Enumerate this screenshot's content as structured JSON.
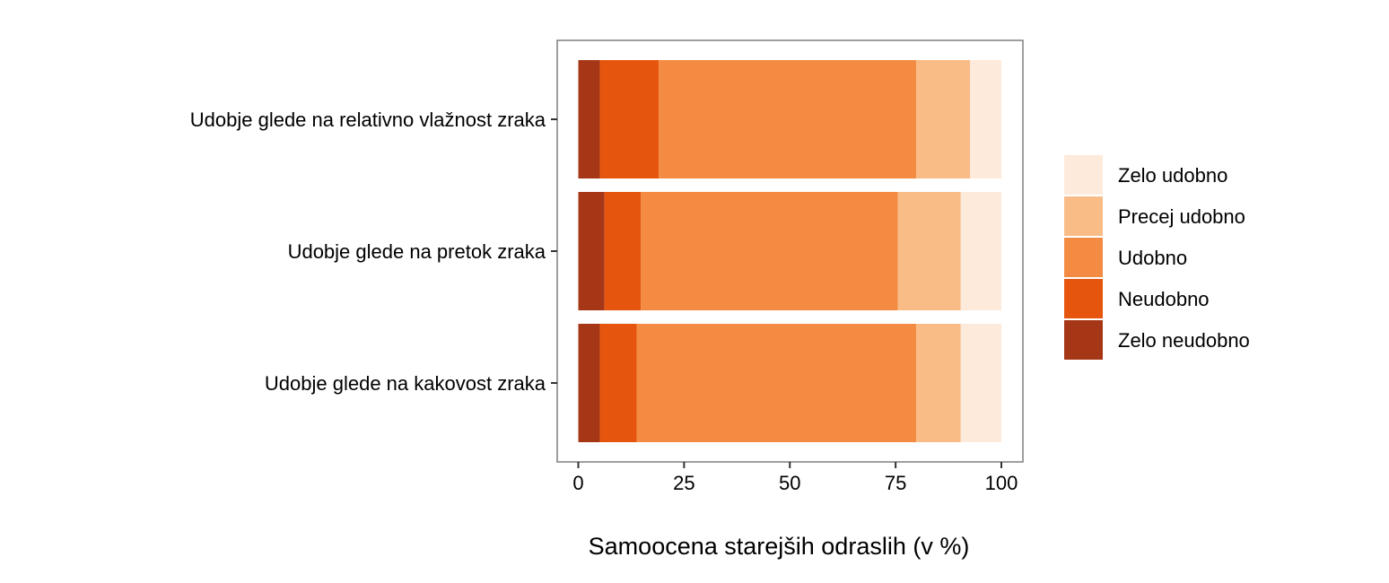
{
  "chart_data": {
    "type": "bar",
    "orientation": "horizontal",
    "stacked": true,
    "title": "",
    "xlabel": "Samoocena starejših odraslih (v %)",
    "ylabel": "",
    "xlim": [
      0,
      100
    ],
    "xticks": [
      "0",
      "25",
      "50",
      "75",
      "100"
    ],
    "xtick_values": [
      0,
      25,
      50,
      75,
      100
    ],
    "categories": [
      "Udobje glede na relativno vlažnost zraka",
      "Udobje glede na pretok zraka",
      "Udobje glede na kakovost zraka"
    ],
    "series": [
      {
        "name": "Zelo neudobno",
        "color": "#A63716",
        "values": [
          5.1,
          6.2,
          5.1
        ]
      },
      {
        "name": "Neudobno",
        "color": "#E6550D",
        "values": [
          13.9,
          8.6,
          8.7
        ]
      },
      {
        "name": "Udobno",
        "color": "#F38B43",
        "values": [
          60.9,
          60.7,
          66.1
        ]
      },
      {
        "name": "Precej udobno",
        "color": "#F9BC86",
        "values": [
          12.7,
          14.9,
          10.5
        ]
      },
      {
        "name": "Zelo udobno",
        "color": "#FEEADB",
        "values": [
          7.4,
          9.6,
          9.6
        ]
      }
    ],
    "legend": {
      "placement": "right",
      "order": [
        "Zelo udobno",
        "Precej udobno",
        "Udobno",
        "Neudobno",
        "Zelo neudobno"
      ]
    },
    "grid": false
  }
}
